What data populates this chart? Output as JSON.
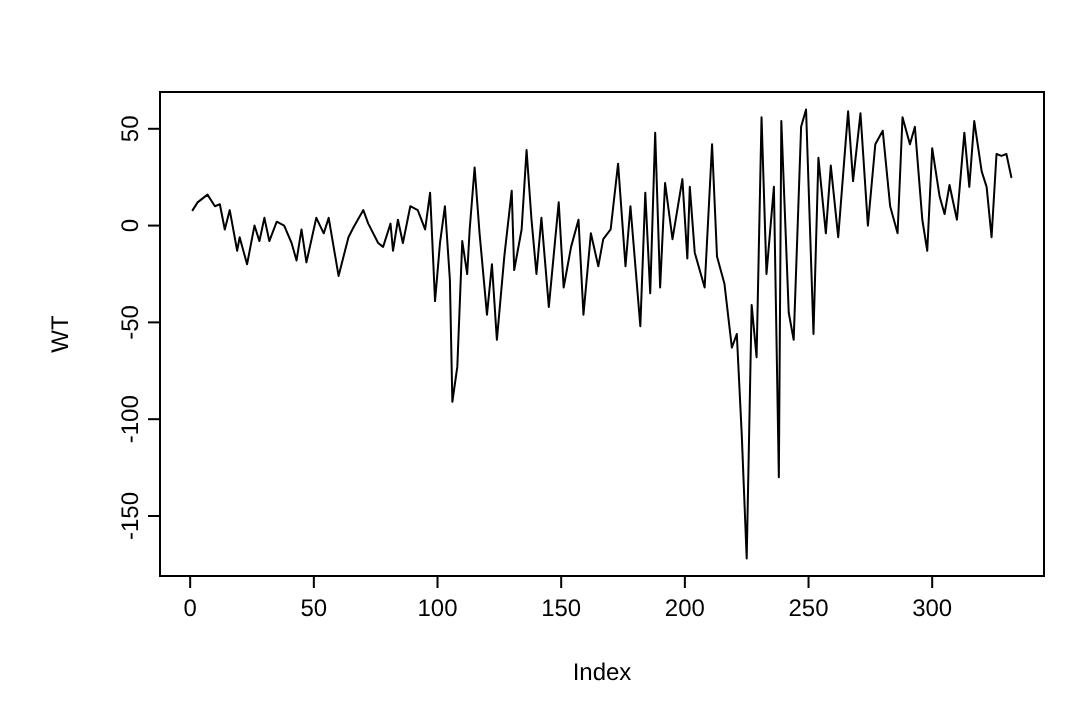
{
  "chart_data": {
    "type": "line",
    "xlabel": "Index",
    "ylabel": "WT",
    "xlim": [
      -12.2,
      345.2
    ],
    "ylim": [
      -181,
      69
    ],
    "xticks": [
      0,
      50,
      100,
      150,
      200,
      250,
      300
    ],
    "yticks": [
      -150,
      -100,
      -50,
      0,
      50
    ],
    "grid": false,
    "marker": "none",
    "line_style": "solid",
    "series": [
      {
        "color": "#000000",
        "x": [
          1,
          3,
          7,
          10,
          12,
          14,
          16,
          19,
          20,
          23,
          26,
          28,
          30,
          32,
          35,
          38,
          41,
          43,
          45,
          47,
          51,
          54,
          56,
          60,
          64,
          66,
          70,
          72,
          76,
          78,
          81,
          82,
          84,
          86,
          89,
          92,
          95,
          97,
          99,
          101,
          103,
          105,
          106,
          108,
          110,
          112,
          113,
          115,
          117,
          120,
          122,
          124,
          127,
          130,
          131,
          134,
          136,
          138,
          140,
          142,
          145,
          149,
          151,
          154,
          157,
          159,
          162,
          165,
          167,
          170,
          173,
          176,
          178,
          182,
          184,
          186,
          188,
          190,
          192,
          195,
          199,
          201,
          202,
          204,
          208,
          211,
          213,
          216,
          219,
          221,
          223,
          225,
          227,
          229,
          231,
          233,
          236,
          238,
          239,
          242,
          244,
          247,
          249,
          252,
          254,
          257,
          259,
          262,
          265,
          266,
          268,
          271,
          274,
          277,
          280,
          283,
          286,
          288,
          291,
          293,
          296,
          298,
          300,
          303,
          305,
          307,
          310,
          313,
          315,
          317,
          320,
          322,
          324,
          326,
          328,
          330,
          332
        ],
        "values": [
          8,
          12,
          16,
          10,
          11,
          -2,
          8,
          -13,
          -6,
          -20,
          0,
          -8,
          4,
          -8,
          2,
          0,
          -9,
          -18,
          -2,
          -19,
          4,
          -4,
          4,
          -26,
          -6,
          -1,
          8,
          1,
          -9,
          -11,
          1,
          -13,
          3,
          -9,
          10,
          8,
          -2,
          17,
          -39,
          -9,
          10,
          -28,
          -91,
          -73,
          -8,
          -25,
          -2,
          30,
          -4,
          -46,
          -20,
          -59,
          -16,
          18,
          -23,
          -2,
          39,
          3,
          -25,
          4,
          -42,
          12,
          -32,
          -11,
          3,
          -46,
          -4,
          -21,
          -7,
          -2,
          32,
          -21,
          10,
          -52,
          17,
          -35,
          48,
          -32,
          22,
          -7,
          24,
          -17,
          20,
          -14,
          -32,
          42,
          -16,
          -30,
          -63,
          -56,
          -108,
          -172,
          -41,
          -68,
          56,
          -25,
          20,
          -130,
          54,
          -45,
          -59,
          51,
          60,
          -56,
          35,
          -4,
          31,
          -6,
          43,
          59,
          23,
          58,
          0,
          42,
          49,
          10,
          -4,
          56,
          42,
          51,
          3,
          -13,
          40,
          15,
          6,
          21,
          3,
          48,
          20,
          54,
          28,
          20,
          -6,
          37,
          36,
          37,
          25
        ]
      }
    ]
  }
}
